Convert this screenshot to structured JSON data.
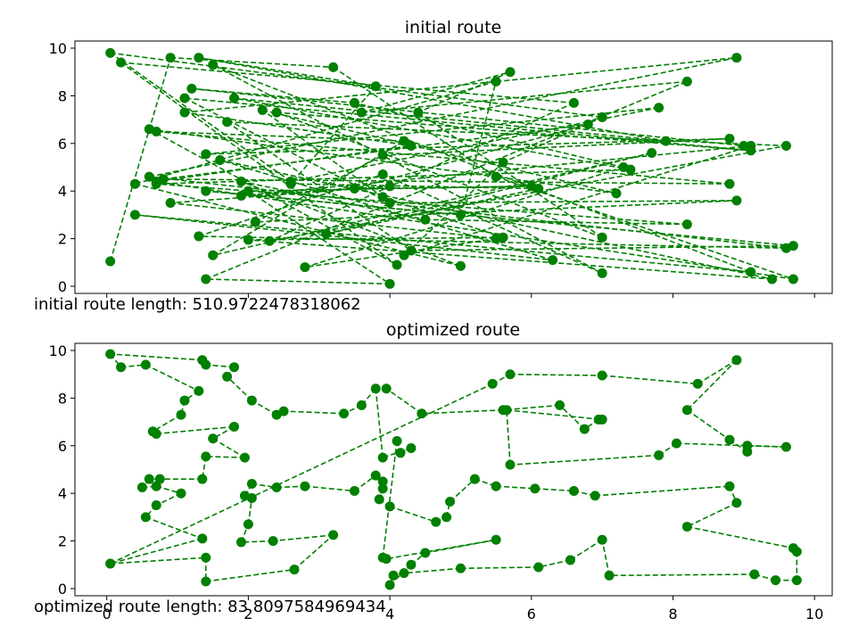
{
  "colors": {
    "route": "#008000",
    "axes": "#000000"
  },
  "chart_data": [
    {
      "type": "line",
      "title": "initial route",
      "annotation": "initial route length: 510.9722478318062",
      "xlim": [
        -0.45,
        10.25
      ],
      "ylim": [
        -0.3,
        10.3
      ],
      "xticks_labeled": false,
      "yticks": [
        "0",
        "2",
        "4",
        "6",
        "8",
        "10"
      ],
      "line_style": "dashed",
      "marker": "circle",
      "series": [
        {
          "values": [
            [
              0.05,
              1.05
            ],
            [
              0.9,
              9.6
            ],
            [
              3.2,
              9.2
            ],
            [
              5.5,
              4.6
            ],
            [
              9.7,
              0.3
            ],
            [
              0.7,
              4.4
            ],
            [
              4.3,
              5.9
            ],
            [
              1.1,
              7.3
            ],
            [
              8.9,
              9.6
            ],
            [
              0.6,
              4.6
            ],
            [
              9.6,
              1.6
            ],
            [
              1.3,
              2.1
            ],
            [
              3.9,
              4.7
            ],
            [
              7.0,
              0.55
            ],
            [
              1.5,
              9.3
            ],
            [
              9.1,
              0.6
            ],
            [
              0.4,
              3.0
            ],
            [
              6.3,
              1.1
            ],
            [
              1.6,
              5.3
            ],
            [
              9.4,
              0.3
            ],
            [
              2.0,
              1.95
            ],
            [
              5.6,
              2.05
            ],
            [
              3.9,
              3.75
            ],
            [
              2.2,
              7.4
            ],
            [
              7.2,
              3.9
            ],
            [
              0.6,
              6.6
            ],
            [
              4.1,
              0.9
            ],
            [
              0.2,
              9.4
            ],
            [
              6.6,
              7.7
            ],
            [
              2.3,
              1.9
            ],
            [
              9.6,
              5.9
            ],
            [
              1.7,
              6.9
            ],
            [
              4.3,
              1.5
            ],
            [
              9.7,
              1.7
            ],
            [
              1.4,
              4.0
            ],
            [
              5.0,
              3.0
            ],
            [
              5.5,
              8.6
            ],
            [
              0.4,
              4.3
            ],
            [
              5.0,
              0.85
            ],
            [
              1.9,
              4.4
            ],
            [
              4.5,
              2.8
            ],
            [
              8.2,
              2.6
            ],
            [
              0.7,
              4.3
            ],
            [
              7.4,
              4.9
            ],
            [
              1.8,
              7.9
            ],
            [
              7.9,
              6.1
            ],
            [
              1.3,
              9.6
            ],
            [
              3.8,
              8.4
            ],
            [
              2.6,
              4.3
            ],
            [
              6.1,
              4.1
            ],
            [
              3.1,
              2.2
            ],
            [
              7.7,
              5.6
            ],
            [
              1.5,
              1.3
            ],
            [
              4.2,
              6.1
            ],
            [
              0.7,
              6.5
            ],
            [
              8.8,
              4.3
            ],
            [
              0.8,
              4.5
            ],
            [
              6.8,
              6.8
            ],
            [
              3.5,
              4.1
            ],
            [
              6.0,
              4.2
            ],
            [
              2.0,
              4.0
            ],
            [
              4.0,
              0.1
            ],
            [
              1.4,
              0.3
            ],
            [
              8.2,
              8.6
            ],
            [
              3.6,
              7.3
            ],
            [
              5.7,
              9.0
            ],
            [
              4.4,
              7.3
            ],
            [
              7.0,
              2.05
            ],
            [
              2.4,
              7.3
            ],
            [
              9.1,
              5.7
            ],
            [
              1.1,
              7.9
            ],
            [
              4.0,
              3.5
            ],
            [
              8.9,
              3.6
            ],
            [
              2.1,
              2.7
            ],
            [
              3.9,
              5.5
            ],
            [
              8.8,
              6.2
            ],
            [
              1.4,
              5.55
            ],
            [
              7.8,
              7.5
            ],
            [
              2.6,
              4.4
            ],
            [
              0.05,
              9.8
            ],
            [
              7.0,
              7.1
            ],
            [
              5.6,
              5.2
            ],
            [
              4.2,
              1.3
            ],
            [
              9.1,
              5.9
            ],
            [
              1.9,
              3.8
            ],
            [
              4.0,
              4.2
            ],
            [
              0.9,
              3.5
            ],
            [
              5.5,
              2.0
            ],
            [
              2.8,
              0.8
            ],
            [
              7.3,
              5.0
            ],
            [
              3.5,
              7.7
            ],
            [
              1.2,
              8.3
            ],
            [
              9.0,
              5.9
            ]
          ]
        }
      ]
    },
    {
      "type": "line",
      "title": "optimized route",
      "annotation": "optimized route length: 83.8097584969434",
      "xlim": [
        -0.45,
        10.25
      ],
      "ylim": [
        -0.3,
        10.3
      ],
      "xticks": [
        "0",
        "2",
        "4",
        "6",
        "8",
        "10"
      ],
      "yticks": [
        "0",
        "2",
        "4",
        "6",
        "8",
        "10"
      ],
      "line_style": "dashed",
      "marker": "circle",
      "series": [
        {
          "values": [
            [
              0.05,
              1.05
            ],
            [
              1.4,
              1.3
            ],
            [
              1.4,
              0.3
            ],
            [
              2.65,
              0.8
            ],
            [
              3.2,
              2.25
            ],
            [
              2.35,
              2.0
            ],
            [
              1.9,
              1.95
            ],
            [
              2.0,
              2.7
            ],
            [
              2.05,
              3.8
            ],
            [
              1.95,
              3.9
            ],
            [
              2.05,
              4.4
            ],
            [
              2.4,
              4.25
            ],
            [
              2.8,
              4.3
            ],
            [
              3.5,
              4.1
            ],
            [
              3.8,
              4.75
            ],
            [
              3.9,
              4.5
            ],
            [
              3.9,
              4.2
            ],
            [
              3.85,
              3.75
            ],
            [
              4.0,
              3.45
            ],
            [
              4.65,
              2.8
            ],
            [
              4.8,
              3.0
            ],
            [
              4.85,
              3.65
            ],
            [
              5.2,
              4.6
            ],
            [
              5.5,
              4.3
            ],
            [
              6.05,
              4.2
            ],
            [
              6.6,
              4.1
            ],
            [
              6.9,
              3.9
            ],
            [
              8.8,
              4.3
            ],
            [
              8.9,
              3.6
            ],
            [
              8.2,
              2.6
            ],
            [
              9.7,
              1.7
            ],
            [
              9.75,
              1.55
            ],
            [
              9.75,
              0.35
            ],
            [
              9.45,
              0.35
            ],
            [
              9.15,
              0.6
            ],
            [
              7.1,
              0.55
            ],
            [
              7.0,
              2.05
            ],
            [
              6.55,
              1.2
            ],
            [
              6.1,
              0.9
            ],
            [
              5.0,
              0.85
            ],
            [
              4.2,
              0.65
            ],
            [
              4.05,
              0.55
            ],
            [
              4.0,
              0.15
            ],
            [
              4.3,
              1.0
            ],
            [
              4.5,
              1.5
            ],
            [
              5.5,
              2.05
            ],
            [
              3.95,
              1.25
            ],
            [
              3.9,
              1.3
            ],
            [
              4.1,
              6.2
            ],
            [
              4.15,
              5.7
            ],
            [
              4.3,
              5.9
            ],
            [
              3.9,
              5.5
            ],
            [
              3.8,
              8.4
            ],
            [
              3.6,
              7.7
            ],
            [
              3.35,
              7.35
            ],
            [
              2.5,
              7.45
            ],
            [
              2.4,
              7.3
            ],
            [
              2.05,
              7.9
            ],
            [
              1.7,
              8.9
            ],
            [
              1.8,
              9.3
            ],
            [
              1.4,
              9.4
            ],
            [
              1.35,
              9.6
            ],
            [
              0.05,
              9.85
            ],
            [
              0.2,
              9.3
            ],
            [
              0.55,
              9.4
            ],
            [
              1.3,
              8.3
            ],
            [
              1.1,
              7.9
            ],
            [
              1.05,
              7.3
            ],
            [
              0.65,
              6.6
            ],
            [
              0.7,
              6.5
            ],
            [
              1.8,
              6.8
            ],
            [
              1.5,
              6.3
            ],
            [
              1.95,
              5.5
            ],
            [
              1.4,
              5.55
            ],
            [
              1.35,
              4.6
            ],
            [
              0.75,
              4.6
            ],
            [
              0.6,
              4.6
            ],
            [
              0.5,
              4.25
            ],
            [
              0.7,
              4.3
            ],
            [
              1.05,
              4.0
            ],
            [
              0.7,
              3.5
            ],
            [
              0.55,
              3.0
            ],
            [
              1.35,
              2.1
            ],
            [
              0.05,
              1.05
            ],
            [
              5.45,
              8.6
            ],
            [
              5.7,
              9.0
            ],
            [
              7.0,
              8.95
            ],
            [
              8.35,
              8.6
            ],
            [
              8.9,
              9.6
            ],
            [
              8.2,
              7.5
            ],
            [
              8.8,
              6.25
            ],
            [
              9.05,
              5.75
            ],
            [
              9.05,
              6.0
            ],
            [
              9.6,
              5.95
            ],
            [
              8.05,
              6.1
            ],
            [
              7.8,
              5.6
            ],
            [
              5.7,
              5.2
            ],
            [
              5.65,
              7.5
            ],
            [
              7.0,
              7.1
            ],
            [
              6.95,
              7.1
            ],
            [
              6.75,
              6.7
            ],
            [
              6.4,
              7.7
            ],
            [
              5.6,
              7.5
            ],
            [
              4.45,
              7.35
            ],
            [
              3.95,
              8.4
            ]
          ]
        }
      ]
    }
  ]
}
